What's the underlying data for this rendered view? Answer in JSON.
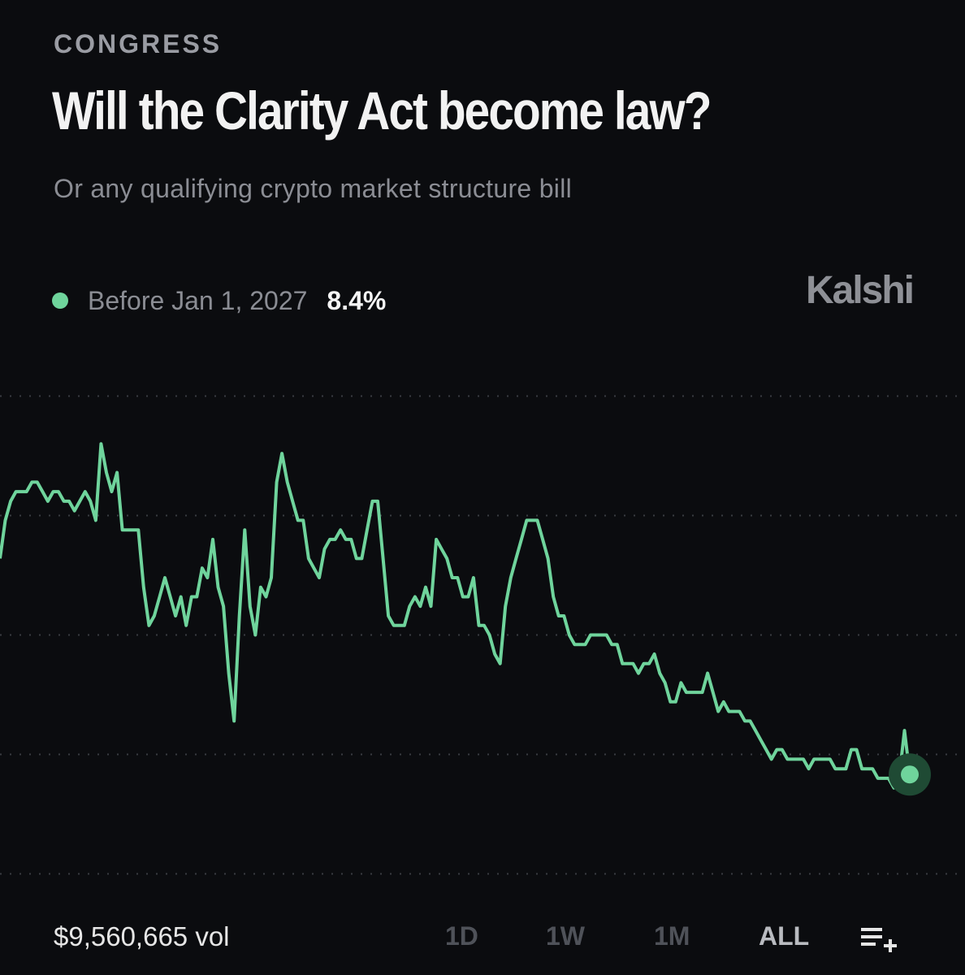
{
  "category": "CONGRESS",
  "title": "Will the Clarity Act become law?",
  "subtitle": "Or any qualifying crypto market structure bill",
  "legend": {
    "label": "Before Jan 1, 2027",
    "value": "8.4%",
    "color": "#6fd49c"
  },
  "brand": "Kalshi",
  "chart_data": {
    "type": "line",
    "series": [
      {
        "name": "Before Jan 1, 2027",
        "color": "#6fd49c",
        "values": [
          31,
          35,
          37,
          38,
          38,
          38,
          39,
          39,
          38,
          37,
          38,
          38,
          37,
          37,
          36,
          37,
          38,
          37,
          35,
          43,
          40,
          38,
          40,
          34,
          34,
          34,
          34,
          28,
          24,
          25,
          27,
          29,
          27,
          25,
          27,
          24,
          27,
          27,
          30,
          29,
          33,
          28,
          26,
          19,
          14,
          25,
          34,
          26,
          23,
          28,
          27,
          29,
          39,
          42,
          39,
          37,
          35,
          35,
          31,
          30,
          29,
          32,
          33,
          33,
          34,
          33,
          33,
          31,
          31,
          34,
          37,
          37,
          31,
          25,
          24,
          24,
          24,
          26,
          27,
          26,
          28,
          26,
          33,
          32,
          31,
          29,
          29,
          27,
          27,
          29,
          24,
          24,
          23,
          21,
          20,
          26,
          29,
          31,
          33,
          35,
          35,
          35,
          33,
          31,
          27,
          25,
          25,
          23,
          22,
          22,
          22,
          23,
          23,
          23,
          23,
          22,
          22,
          20,
          20,
          20,
          19,
          20,
          20,
          21,
          19,
          18,
          16,
          16,
          18,
          17,
          17,
          17,
          17,
          19,
          17,
          15,
          16,
          15,
          15,
          15,
          14,
          14,
          13,
          12,
          11,
          10,
          11,
          11,
          10,
          10,
          10,
          10,
          9,
          10,
          10,
          10,
          10,
          9,
          9,
          9,
          11,
          11,
          9,
          9,
          9,
          8,
          8,
          8,
          7,
          8,
          13,
          8.4
        ]
      }
    ],
    "ylim": [
      0,
      50
    ],
    "grid": "horizontal dotted",
    "last_point_marker": true
  },
  "footer": {
    "volume": "$9,560,665 vol",
    "ranges": [
      "1D",
      "1W",
      "1M",
      "ALL"
    ],
    "active_range": "ALL",
    "list_icon": "list-add-icon"
  }
}
